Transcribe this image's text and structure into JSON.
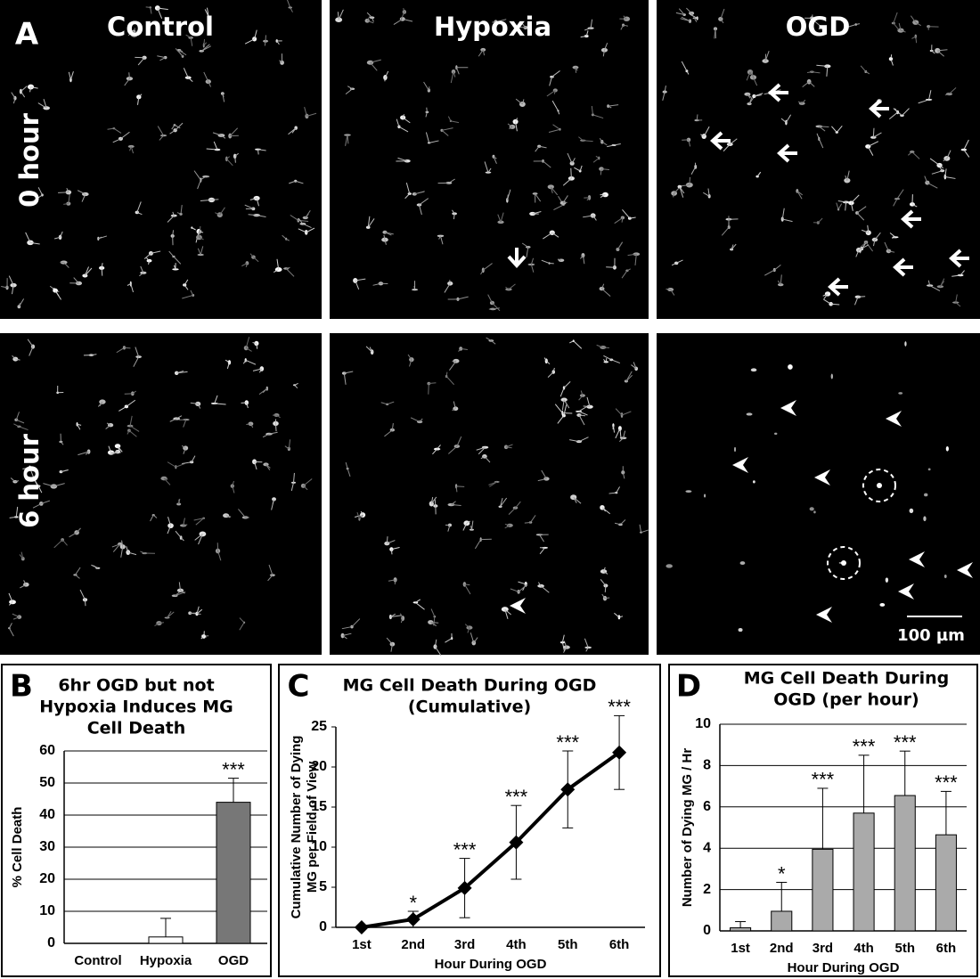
{
  "panel_a": {
    "label": "A",
    "columns": [
      "Control",
      "Hypoxia",
      "OGD"
    ],
    "rows": [
      "0 hour",
      "6 hour"
    ],
    "scale_bar": "100 µm"
  },
  "chart_data": [
    {
      "type": "bar",
      "panel_label": "B",
      "title": [
        "6hr OGD but not",
        "Hypoxia Induces MG",
        "Cell Death"
      ],
      "y_label": [
        "% Cell Death"
      ],
      "categories": [
        "Control",
        "Hypoxia",
        "OGD"
      ],
      "values": [
        0,
        2,
        44
      ],
      "errors": [
        0,
        5.8,
        7.5
      ],
      "significance": [
        null,
        null,
        "***"
      ],
      "bar_colors": [
        "#ffffff",
        "#ffffff",
        "#777777"
      ],
      "ylim": [
        0,
        60
      ],
      "yticks": [
        0,
        10,
        20,
        30,
        40,
        50,
        60
      ],
      "grid": true
    },
    {
      "type": "line",
      "panel_label": "C",
      "title": [
        "MG Cell Death During OGD",
        "(Cumulative)"
      ],
      "y_label": [
        "Cumulative Number of Dying",
        "MG per Field of View"
      ],
      "x_label": "Hour During OGD",
      "categories": [
        "1st",
        "2nd",
        "3rd",
        "4th",
        "5th",
        "6th"
      ],
      "values": [
        0,
        1,
        4.9,
        10.6,
        17.2,
        21.8
      ],
      "errors": [
        0,
        1,
        3.7,
        4.6,
        4.8,
        4.6
      ],
      "significance": [
        null,
        "*",
        "***",
        "***",
        "***",
        "***"
      ],
      "color": "#000000",
      "ylim": [
        0,
        25
      ],
      "yticks": [
        0,
        5,
        10,
        15,
        20,
        25
      ],
      "grid": false
    },
    {
      "type": "bar",
      "panel_label": "D",
      "title": [
        "MG Cell Death During",
        "OGD (per hour)"
      ],
      "y_label": [
        "Number of Dying MG / Hr"
      ],
      "x_label": "Hour During OGD",
      "categories": [
        "1st",
        "2nd",
        "3rd",
        "4th",
        "5th",
        "6th"
      ],
      "values": [
        0.15,
        0.95,
        3.95,
        5.7,
        6.55,
        4.65
      ],
      "errors": [
        0.3,
        1.4,
        2.95,
        2.8,
        2.15,
        2.1
      ],
      "significance": [
        null,
        "*",
        "***",
        "***",
        "***",
        "***"
      ],
      "bar_colors": [
        "#aaaaaa",
        "#aaaaaa",
        "#aaaaaa",
        "#aaaaaa",
        "#aaaaaa",
        "#aaaaaa"
      ],
      "ylim": [
        0,
        10
      ],
      "yticks": [
        0,
        2,
        4,
        6,
        8,
        10
      ],
      "grid": true
    }
  ]
}
